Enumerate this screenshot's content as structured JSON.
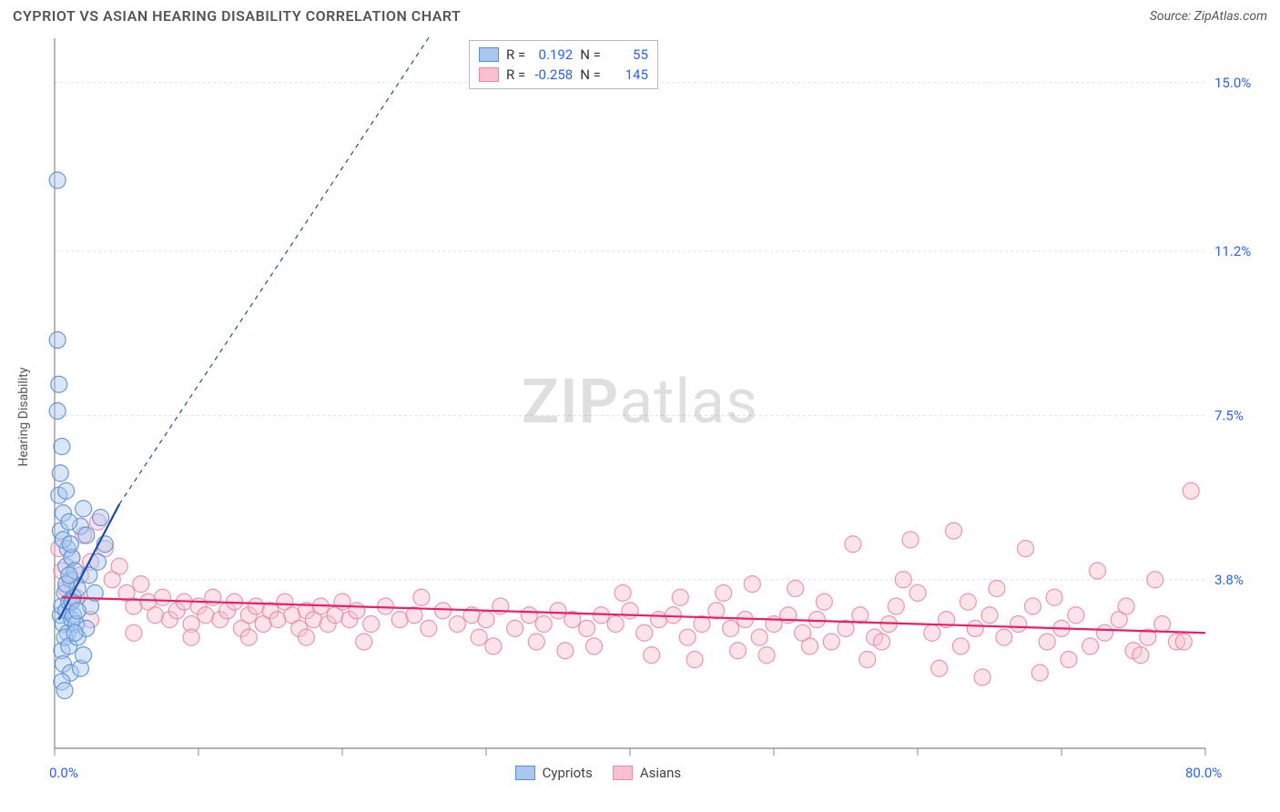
{
  "title": "CYPRIOT VS ASIAN HEARING DISABILITY CORRELATION CHART",
  "source": "Source: ZipAtlas.com",
  "watermark_bold": "ZIP",
  "watermark_light": "atlas",
  "yaxis_label": "Hearing Disability",
  "chart": {
    "type": "scatter",
    "background_color": "#ffffff",
    "grid_color": "#e0e0e0",
    "axis_color": "#888888",
    "tick_color": "#888888",
    "xlim": [
      0,
      80
    ],
    "ylim": [
      0,
      16
    ],
    "x_label_min": "0.0%",
    "x_label_max": "80.0%",
    "y_gridlines": [
      {
        "v": 3.8,
        "label": "3.8%"
      },
      {
        "v": 7.5,
        "label": "7.5%"
      },
      {
        "v": 11.2,
        "label": "11.2%"
      },
      {
        "v": 15.0,
        "label": "15.0%"
      }
    ],
    "x_ticks": [
      0,
      10,
      20,
      30,
      40,
      50,
      60,
      70,
      80
    ],
    "label_color": "#2962ff",
    "label_fontsize": 15,
    "marker_radius": 9,
    "marker_opacity": 0.45,
    "line_width": 2.2,
    "dash_pattern": "5,5",
    "series": [
      {
        "name": "Cypriots",
        "legend_label": "Cypriots",
        "color_fill": "#a8c8f0",
        "color_stroke": "#5a8fd6",
        "line_color": "#1a4fa0",
        "R": "0.192",
        "N": "55",
        "trend_solid": {
          "x1": 0.3,
          "y1": 2.9,
          "x2": 4.5,
          "y2": 5.5
        },
        "trend_dashed": {
          "x1": 4.5,
          "y1": 5.5,
          "x2": 27,
          "y2": 16.5
        },
        "points": [
          [
            0.4,
            3.0
          ],
          [
            0.5,
            3.2
          ],
          [
            0.6,
            2.8
          ],
          [
            0.7,
            3.5
          ],
          [
            0.8,
            3.1
          ],
          [
            0.9,
            2.6
          ],
          [
            1.0,
            3.3
          ],
          [
            1.1,
            3.8
          ],
          [
            1.2,
            2.9
          ],
          [
            1.3,
            3.4
          ],
          [
            0.5,
            2.2
          ],
          [
            0.6,
            1.9
          ],
          [
            0.7,
            2.5
          ],
          [
            0.8,
            4.1
          ],
          [
            0.9,
            4.5
          ],
          [
            1.0,
            2.3
          ],
          [
            1.1,
            1.7
          ],
          [
            1.2,
            4.3
          ],
          [
            1.3,
            3.0
          ],
          [
            1.5,
            2.8
          ],
          [
            1.6,
            3.6
          ],
          [
            1.8,
            5.0
          ],
          [
            2.0,
            5.4
          ],
          [
            2.2,
            4.8
          ],
          [
            2.4,
            3.9
          ],
          [
            2.5,
            3.2
          ],
          [
            2.8,
            3.5
          ],
          [
            3.0,
            4.2
          ],
          [
            3.2,
            5.2
          ],
          [
            3.5,
            4.6
          ],
          [
            0.3,
            5.7
          ],
          [
            0.4,
            6.2
          ],
          [
            0.5,
            6.8
          ],
          [
            0.2,
            7.6
          ],
          [
            0.3,
            8.2
          ],
          [
            0.2,
            9.2
          ],
          [
            0.4,
            4.9
          ],
          [
            0.6,
            5.3
          ],
          [
            0.8,
            5.8
          ],
          [
            1.0,
            5.1
          ],
          [
            0.2,
            12.8
          ],
          [
            1.4,
            4.0
          ],
          [
            1.6,
            2.5
          ],
          [
            1.8,
            1.8
          ],
          [
            2.0,
            2.1
          ],
          [
            2.2,
            2.7
          ],
          [
            0.5,
            1.5
          ],
          [
            0.7,
            1.3
          ],
          [
            0.6,
            4.7
          ],
          [
            0.8,
            3.7
          ],
          [
            1.0,
            3.9
          ],
          [
            1.2,
            3.3
          ],
          [
            1.4,
            2.6
          ],
          [
            1.6,
            3.1
          ],
          [
            1.1,
            4.6
          ]
        ]
      },
      {
        "name": "Asians",
        "legend_label": "Asians",
        "color_fill": "#f8c0d0",
        "color_stroke": "#e88aa8",
        "line_color": "#e91e63",
        "R": "-0.258",
        "N": "145",
        "trend_solid": {
          "x1": 0.5,
          "y1": 3.4,
          "x2": 80,
          "y2": 2.6
        },
        "trend_dashed": null,
        "points": [
          [
            1.5,
            3.4
          ],
          [
            2,
            4.8
          ],
          [
            2.5,
            4.2
          ],
          [
            3,
            5.1
          ],
          [
            3.5,
            4.5
          ],
          [
            4,
            3.8
          ],
          [
            4.5,
            4.1
          ],
          [
            5,
            3.5
          ],
          [
            5.5,
            3.2
          ],
          [
            6,
            3.7
          ],
          [
            6.5,
            3.3
          ],
          [
            7,
            3.0
          ],
          [
            7.5,
            3.4
          ],
          [
            8,
            2.9
          ],
          [
            8.5,
            3.1
          ],
          [
            9,
            3.3
          ],
          [
            9.5,
            2.8
          ],
          [
            10,
            3.2
          ],
          [
            10.5,
            3.0
          ],
          [
            11,
            3.4
          ],
          [
            11.5,
            2.9
          ],
          [
            12,
            3.1
          ],
          [
            12.5,
            3.3
          ],
          [
            13,
            2.7
          ],
          [
            13.5,
            3.0
          ],
          [
            14,
            3.2
          ],
          [
            14.5,
            2.8
          ],
          [
            15,
            3.1
          ],
          [
            15.5,
            2.9
          ],
          [
            16,
            3.3
          ],
          [
            16.5,
            3.0
          ],
          [
            17,
            2.7
          ],
          [
            17.5,
            3.1
          ],
          [
            18,
            2.9
          ],
          [
            18.5,
            3.2
          ],
          [
            19,
            2.8
          ],
          [
            19.5,
            3.0
          ],
          [
            20,
            3.3
          ],
          [
            20.5,
            2.9
          ],
          [
            21,
            3.1
          ],
          [
            22,
            2.8
          ],
          [
            23,
            3.2
          ],
          [
            24,
            2.9
          ],
          [
            25,
            3.0
          ],
          [
            26,
            2.7
          ],
          [
            27,
            3.1
          ],
          [
            28,
            2.8
          ],
          [
            29,
            3.0
          ],
          [
            30,
            2.9
          ],
          [
            31,
            3.2
          ],
          [
            32,
            2.7
          ],
          [
            33,
            3.0
          ],
          [
            34,
            2.8
          ],
          [
            35,
            3.1
          ],
          [
            36,
            2.9
          ],
          [
            37,
            2.7
          ],
          [
            38,
            3.0
          ],
          [
            39,
            2.8
          ],
          [
            40,
            3.1
          ],
          [
            41,
            2.6
          ],
          [
            42,
            2.9
          ],
          [
            43,
            3.0
          ],
          [
            44,
            2.5
          ],
          [
            45,
            2.8
          ],
          [
            46,
            3.1
          ],
          [
            47,
            2.7
          ],
          [
            48,
            2.9
          ],
          [
            49,
            2.5
          ],
          [
            50,
            2.8
          ],
          [
            51,
            3.0
          ],
          [
            52,
            2.6
          ],
          [
            53,
            2.9
          ],
          [
            54,
            2.4
          ],
          [
            55,
            2.7
          ],
          [
            56,
            3.0
          ],
          [
            57,
            2.5
          ],
          [
            58,
            2.8
          ],
          [
            59,
            3.8
          ],
          [
            60,
            3.5
          ],
          [
            61,
            2.6
          ],
          [
            62,
            2.9
          ],
          [
            63,
            2.3
          ],
          [
            64,
            2.7
          ],
          [
            65,
            3.0
          ],
          [
            66,
            2.5
          ],
          [
            67,
            2.8
          ],
          [
            68,
            3.2
          ],
          [
            69,
            2.4
          ],
          [
            70,
            2.7
          ],
          [
            71,
            3.0
          ],
          [
            72,
            2.3
          ],
          [
            73,
            2.6
          ],
          [
            74,
            2.9
          ],
          [
            75,
            2.2
          ],
          [
            76,
            2.5
          ],
          [
            77,
            2.8
          ],
          [
            78,
            2.4
          ],
          [
            79,
            5.8
          ],
          [
            76.5,
            3.8
          ],
          [
            72.5,
            4.0
          ],
          [
            64.5,
            1.6
          ],
          [
            68.5,
            1.7
          ],
          [
            59.5,
            4.7
          ],
          [
            55.5,
            4.6
          ],
          [
            51.5,
            3.6
          ],
          [
            46.5,
            3.5
          ],
          [
            37.5,
            2.3
          ],
          [
            43.5,
            3.4
          ],
          [
            33.5,
            2.4
          ],
          [
            29.5,
            2.5
          ],
          [
            25.5,
            3.4
          ],
          [
            21.5,
            2.4
          ],
          [
            17.5,
            2.5
          ],
          [
            13.5,
            2.5
          ],
          [
            9.5,
            2.5
          ],
          [
            5.5,
            2.6
          ],
          [
            2.5,
            2.9
          ],
          [
            1.8,
            3.9
          ],
          [
            1.2,
            4.3
          ],
          [
            0.8,
            3.6
          ],
          [
            0.5,
            4.0
          ],
          [
            0.3,
            4.5
          ],
          [
            62.5,
            4.9
          ],
          [
            67.5,
            4.5
          ],
          [
            47.5,
            2.2
          ],
          [
            52.5,
            2.3
          ],
          [
            57.5,
            2.4
          ],
          [
            41.5,
            2.1
          ],
          [
            35.5,
            2.2
          ],
          [
            30.5,
            2.3
          ],
          [
            61.5,
            1.8
          ],
          [
            56.5,
            2.0
          ],
          [
            48.5,
            3.7
          ],
          [
            44.5,
            2.0
          ],
          [
            39.5,
            3.5
          ],
          [
            65.5,
            3.6
          ],
          [
            70.5,
            2.0
          ],
          [
            75.5,
            2.1
          ],
          [
            78.5,
            2.4
          ],
          [
            74.5,
            3.2
          ],
          [
            69.5,
            3.4
          ],
          [
            63.5,
            3.3
          ],
          [
            58.5,
            3.2
          ],
          [
            53.5,
            3.3
          ],
          [
            49.5,
            2.1
          ]
        ]
      }
    ]
  },
  "legend_top": {
    "rows": [
      {
        "swatch_fill": "#a8c8f0",
        "swatch_stroke": "#5a8fd6",
        "r_lbl": "R =",
        "r_val": "0.192",
        "n_lbl": "N =",
        "n_val": "55"
      },
      {
        "swatch_fill": "#f8c0d0",
        "swatch_stroke": "#e88aa8",
        "r_lbl": "R =",
        "r_val": "-0.258",
        "n_lbl": "N =",
        "n_val": "145"
      }
    ]
  },
  "legend_bottom": {
    "items": [
      {
        "label": "Cypriots",
        "swatch_fill": "#a8c8f0",
        "swatch_stroke": "#5a8fd6"
      },
      {
        "label": "Asians",
        "swatch_fill": "#f8c0d0",
        "swatch_stroke": "#e88aa8"
      }
    ]
  }
}
